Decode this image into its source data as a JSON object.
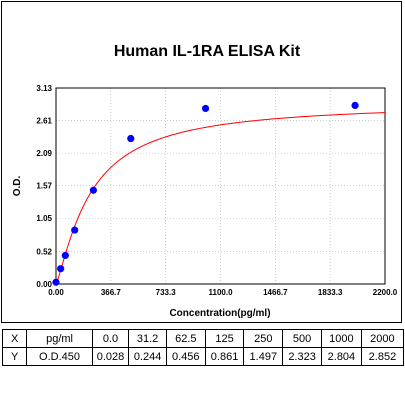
{
  "chart_data": {
    "type": "scatter",
    "title": "Human IL-1RA ELISA Kit",
    "xlabel": "Concentration(pg/ml)",
    "ylabel": "O.D.",
    "xlim": [
      0,
      2200
    ],
    "ylim": [
      0,
      3.13
    ],
    "xticks": [
      "0.00",
      "366.7",
      "733.3",
      "1100.0",
      "1466.7",
      "1833.3",
      "2200.0"
    ],
    "yticks": [
      "0.00",
      "0.52",
      "1.05",
      "1.57",
      "2.09",
      "2.61",
      "3.13"
    ],
    "grid": true,
    "points": [
      {
        "x": 0,
        "y": 0.028
      },
      {
        "x": 31.2,
        "y": 0.244
      },
      {
        "x": 62.5,
        "y": 0.456
      },
      {
        "x": 125,
        "y": 0.861
      },
      {
        "x": 250,
        "y": 1.497
      },
      {
        "x": 500,
        "y": 2.323
      },
      {
        "x": 1000,
        "y": 2.804
      },
      {
        "x": 2000,
        "y": 2.852
      }
    ],
    "point_color": "#0000ff",
    "curve_color": "#ff0000"
  },
  "table": {
    "rows": [
      [
        "X",
        "pg/ml",
        "0.0",
        "31.2",
        "62.5",
        "125",
        "250",
        "500",
        "1000",
        "2000"
      ],
      [
        "Y",
        "O.D.450",
        "0.028",
        "0.244",
        "0.456",
        "0.861",
        "1.497",
        "2.323",
        "2.804",
        "2.852"
      ]
    ]
  }
}
